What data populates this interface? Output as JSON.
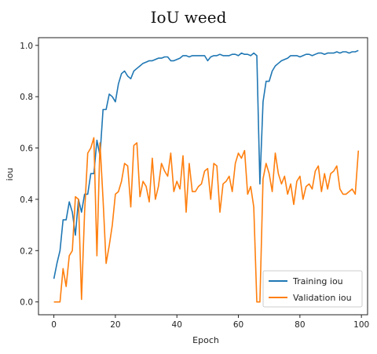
{
  "chart_data": {
    "type": "line",
    "title": "IoU weed",
    "xlabel": "Epoch",
    "ylabel": "iou",
    "xlim": [
      -5,
      102
    ],
    "ylim": [
      -0.05,
      1.03
    ],
    "xticks": [
      "0",
      "20",
      "40",
      "60",
      "80",
      "100"
    ],
    "yticks": [
      "0.0",
      "0.2",
      "0.4",
      "0.6",
      "0.8",
      "1.0"
    ],
    "grid": false,
    "legend_position": "lower-right",
    "series": [
      {
        "name": "Training iou",
        "color": "#1f77b4",
        "x": [
          0,
          1,
          2,
          3,
          4,
          5,
          6,
          7,
          8,
          9,
          10,
          11,
          12,
          13,
          14,
          15,
          16,
          17,
          18,
          19,
          20,
          21,
          22,
          23,
          24,
          25,
          26,
          27,
          28,
          29,
          30,
          31,
          32,
          33,
          34,
          35,
          36,
          37,
          38,
          39,
          40,
          41,
          42,
          43,
          44,
          45,
          46,
          47,
          48,
          49,
          50,
          51,
          52,
          53,
          54,
          55,
          56,
          57,
          58,
          59,
          60,
          61,
          62,
          63,
          64,
          65,
          66,
          67,
          68,
          69,
          70,
          71,
          72,
          73,
          74,
          75,
          76,
          77,
          78,
          79,
          80,
          81,
          82,
          83,
          84,
          85,
          86,
          87,
          88,
          89,
          90,
          91,
          92,
          93,
          94,
          95,
          96,
          97,
          98,
          99
        ],
        "values": [
          0.09,
          0.15,
          0.2,
          0.32,
          0.32,
          0.39,
          0.35,
          0.26,
          0.4,
          0.35,
          0.42,
          0.42,
          0.5,
          0.5,
          0.63,
          0.57,
          0.75,
          0.75,
          0.81,
          0.8,
          0.78,
          0.85,
          0.89,
          0.9,
          0.88,
          0.87,
          0.9,
          0.91,
          0.92,
          0.93,
          0.935,
          0.94,
          0.94,
          0.945,
          0.95,
          0.95,
          0.955,
          0.955,
          0.94,
          0.94,
          0.945,
          0.95,
          0.96,
          0.96,
          0.955,
          0.96,
          0.96,
          0.96,
          0.96,
          0.96,
          0.94,
          0.955,
          0.96,
          0.96,
          0.965,
          0.96,
          0.96,
          0.96,
          0.965,
          0.965,
          0.96,
          0.97,
          0.965,
          0.965,
          0.96,
          0.97,
          0.96,
          0.46,
          0.78,
          0.86,
          0.86,
          0.9,
          0.92,
          0.93,
          0.94,
          0.945,
          0.95,
          0.96,
          0.96,
          0.96,
          0.955,
          0.96,
          0.965,
          0.965,
          0.96,
          0.965,
          0.97,
          0.97,
          0.965,
          0.97,
          0.97,
          0.97,
          0.975,
          0.97,
          0.975,
          0.975,
          0.97,
          0.975,
          0.975,
          0.98
        ]
      },
      {
        "name": "Validation iou",
        "color": "#ff7f0e",
        "x": [
          0,
          1,
          2,
          3,
          4,
          5,
          6,
          7,
          8,
          9,
          10,
          11,
          12,
          13,
          14,
          15,
          16,
          17,
          18,
          19,
          20,
          21,
          22,
          23,
          24,
          25,
          26,
          27,
          28,
          29,
          30,
          31,
          32,
          33,
          34,
          35,
          36,
          37,
          38,
          39,
          40,
          41,
          42,
          43,
          44,
          45,
          46,
          47,
          48,
          49,
          50,
          51,
          52,
          53,
          54,
          55,
          56,
          57,
          58,
          59,
          60,
          61,
          62,
          63,
          64,
          65,
          66,
          67,
          68,
          69,
          70,
          71,
          72,
          73,
          74,
          75,
          76,
          77,
          78,
          79,
          80,
          81,
          82,
          83,
          84,
          85,
          86,
          87,
          88,
          89,
          90,
          91,
          92,
          93,
          94,
          95,
          96,
          97,
          98,
          99
        ],
        "values": [
          0.0,
          0.0,
          0.0,
          0.13,
          0.06,
          0.18,
          0.2,
          0.41,
          0.4,
          0.01,
          0.35,
          0.58,
          0.6,
          0.64,
          0.18,
          0.62,
          0.4,
          0.15,
          0.22,
          0.3,
          0.42,
          0.43,
          0.47,
          0.54,
          0.53,
          0.37,
          0.61,
          0.62,
          0.41,
          0.47,
          0.45,
          0.39,
          0.56,
          0.4,
          0.45,
          0.54,
          0.51,
          0.49,
          0.58,
          0.43,
          0.47,
          0.44,
          0.57,
          0.35,
          0.54,
          0.43,
          0.43,
          0.45,
          0.46,
          0.51,
          0.52,
          0.4,
          0.54,
          0.53,
          0.35,
          0.46,
          0.47,
          0.49,
          0.43,
          0.54,
          0.58,
          0.56,
          0.59,
          0.42,
          0.45,
          0.37,
          0.0,
          0.0,
          0.48,
          0.54,
          0.5,
          0.43,
          0.58,
          0.5,
          0.46,
          0.49,
          0.42,
          0.46,
          0.38,
          0.47,
          0.49,
          0.4,
          0.45,
          0.46,
          0.44,
          0.51,
          0.53,
          0.43,
          0.5,
          0.44,
          0.5,
          0.51,
          0.53,
          0.44,
          0.42,
          0.42,
          0.43,
          0.44,
          0.42,
          0.59
        ]
      }
    ]
  }
}
